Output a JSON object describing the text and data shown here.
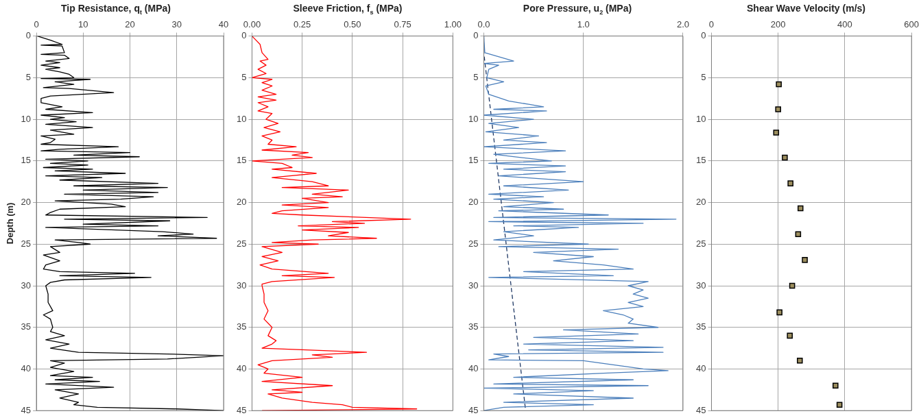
{
  "chart_data": [
    {
      "type": "line",
      "title": "Tip Resistance, q$_{t}$ (MPa)",
      "ylabel": "Depth (m)",
      "xlim": [
        0,
        40
      ],
      "xticks": [
        0,
        10,
        20,
        30,
        40
      ],
      "ylim": [
        45,
        0
      ],
      "yticks": [
        0,
        5,
        10,
        15,
        20,
        25,
        30,
        35,
        40,
        45
      ],
      "grid": true,
      "legend": false,
      "marker": "none",
      "series": [
        {
          "color": "#000000",
          "x": [
            0.2,
            3,
            5.5,
            1,
            5.5,
            6,
            1,
            6,
            7,
            2,
            5,
            1,
            5,
            2,
            5,
            7,
            8,
            1,
            11.5,
            4,
            8,
            1.5,
            7,
            16.5,
            3,
            1,
            1,
            5.5,
            2,
            12,
            1,
            6,
            3,
            8.5,
            2,
            12,
            3,
            8,
            1,
            4,
            3,
            1,
            17.5,
            5,
            1,
            20,
            8,
            22,
            2,
            11,
            3,
            11,
            1.5,
            12,
            4,
            19,
            2,
            14,
            5,
            26,
            8,
            28,
            10,
            26,
            6,
            25,
            18,
            4,
            16,
            19,
            5,
            3,
            2,
            36.5,
            6,
            28.5,
            10,
            26,
            2,
            27,
            33.5,
            26,
            38.5,
            4,
            9,
            11.5,
            3,
            5,
            1.5,
            5,
            2,
            1.5,
            5,
            21,
            5,
            24.5,
            6,
            3,
            2,
            2.5,
            2.5,
            3.5,
            1.5,
            3,
            3.5,
            3,
            6,
            2,
            7,
            3,
            9,
            28,
            40,
            28,
            3,
            6,
            3,
            8,
            3,
            12,
            4,
            13.5,
            2,
            16.5,
            4,
            9,
            5,
            9,
            8,
            13,
            30,
            40
          ],
          "values": [
            0,
            0.5,
            1,
            1.1,
            1.2,
            2,
            2.2,
            2.3,
            2.7,
            3,
            3.2,
            3.5,
            3.8,
            4,
            4.3,
            4.6,
            5,
            5.1,
            5.2,
            5.5,
            5.8,
            6.2,
            6.3,
            6.8,
            7.2,
            7.5,
            8,
            8.5,
            8.8,
            9.2,
            9.5,
            9.8,
            10,
            10.3,
            10.6,
            11,
            11.3,
            11.8,
            12,
            12.4,
            12.8,
            13,
            13.3,
            13.6,
            13.8,
            14,
            14.3,
            14.5,
            14.8,
            15,
            15.3,
            15.5,
            15.8,
            16,
            16.2,
            16.5,
            16.8,
            17,
            17.3,
            17.7,
            18,
            18.2,
            18.5,
            18.8,
            19,
            19.3,
            19.6,
            19.8,
            20.2,
            20.5,
            20.8,
            21.2,
            21.5,
            21.8,
            22,
            22.2,
            22.6,
            22.8,
            23,
            23.5,
            23.8,
            24,
            24.3,
            24.5,
            24.8,
            25,
            25.3,
            26,
            26.3,
            27,
            27.5,
            28,
            28.3,
            28.5,
            28.8,
            29,
            29.3,
            29.6,
            30,
            31,
            32,
            33,
            33.5,
            34,
            35,
            35.5,
            36,
            36.5,
            37,
            37.5,
            38,
            38.2,
            38.4,
            38.8,
            39,
            39.3,
            39.8,
            40.3,
            40.8,
            41,
            41.3,
            41.5,
            41.8,
            42.2,
            42.5,
            43,
            43.5,
            44,
            44.3,
            44.6,
            44.8,
            45
          ]
        }
      ]
    },
    {
      "type": "line",
      "title": "Sleeve Friction, f$_{s}$ (MPa)",
      "xlim": [
        0,
        1
      ],
      "xticks": [
        {
          "value": 0,
          "label": "0.00"
        },
        {
          "value": 0.25,
          "label": "0.25"
        },
        {
          "value": 0.5,
          "label": "0.50"
        },
        {
          "value": 0.75,
          "label": "0.75"
        },
        {
          "value": 1,
          "label": "1.00"
        }
      ],
      "ylim": [
        45,
        0
      ],
      "yticks": [
        0,
        5,
        10,
        15,
        20,
        25,
        30,
        35,
        40,
        45
      ],
      "grid": true,
      "legend": false,
      "marker": "none",
      "series": [
        {
          "color": "#ff0000",
          "x": [
            0,
            0.02,
            0.04,
            0.05,
            0.08,
            0.04,
            0.07,
            0.03,
            0.07,
            0,
            0.1,
            0.05,
            0.1,
            0.05,
            0.12,
            0.03,
            0.12,
            0.03,
            0.08,
            0.03,
            0.1,
            0.07,
            0.13,
            0.06,
            0.14,
            0.05,
            0.1,
            0.08,
            0.22,
            0.05,
            0.28,
            0.2,
            0.3,
            0,
            0.15,
            0.2,
            0.1,
            0.32,
            0.1,
            0.3,
            0.38,
            0.15,
            0.48,
            0.3,
            0.45,
            0.25,
            0.38,
            0.15,
            0.38,
            0.15,
            0.1,
            0.25,
            0.79,
            0.4,
            0.56,
            0.23,
            0.53,
            0.25,
            0.48,
            0.38,
            0.62,
            0.3,
            0.1,
            0.33,
            0.05,
            0.15,
            0.05,
            0.13,
            0.04,
            0.1,
            0.38,
            0.15,
            0.41,
            0.1,
            0.05,
            0.05,
            0.06,
            0.06,
            0.08,
            0.06,
            0.1,
            0.08,
            0.12,
            0.1,
            0.05,
            0.57,
            0.3,
            0.4,
            0.1,
            0.03,
            0.08,
            0.06,
            0.25,
            0.05,
            0.4,
            0.1,
            0.25,
            0.08,
            0.15,
            0.3,
            0.45,
            0.5,
            0.82,
            0.05
          ],
          "values": [
            0,
            0.5,
            1,
            2,
            2.8,
            3,
            3.5,
            4,
            4.5,
            5,
            5.2,
            5.6,
            6,
            6.5,
            7,
            7.3,
            7.7,
            8,
            8.5,
            9,
            9.3,
            10,
            10.5,
            11,
            11.5,
            12,
            12.5,
            13,
            13.3,
            13.7,
            14,
            14.3,
            14.6,
            15,
            15.3,
            15.8,
            16,
            16.5,
            17,
            17.5,
            18,
            18.2,
            18.5,
            19,
            19.3,
            19.5,
            20,
            20.3,
            20.6,
            21,
            21.3,
            21.5,
            22,
            22.3,
            22.5,
            22.8,
            23,
            23.3,
            23.6,
            24,
            24.3,
            24.5,
            24.8,
            25,
            25.3,
            26,
            26.5,
            27,
            27.5,
            28,
            28.5,
            28.8,
            29,
            29.5,
            29.8,
            30,
            31,
            32,
            33,
            34,
            35,
            36,
            36.6,
            37,
            37.5,
            38,
            38.3,
            38.6,
            39,
            39.5,
            40,
            40.5,
            41,
            41.5,
            42,
            42.5,
            42.8,
            43,
            43.5,
            44,
            44.3,
            44.6,
            44.8,
            45
          ]
        }
      ]
    },
    {
      "type": "line",
      "title": "Pore Pressure, u$_{2}$ (MPa)",
      "xlim": [
        0,
        2
      ],
      "xticks": [
        {
          "value": 0,
          "label": "0.0"
        },
        {
          "value": 1,
          "label": "1.0"
        },
        {
          "value": 2,
          "label": "2.0"
        }
      ],
      "ylim": [
        45,
        0
      ],
      "yticks": [
        0,
        5,
        10,
        15,
        20,
        25,
        30,
        35,
        40,
        45
      ],
      "grid": true,
      "legend": false,
      "marker": "none",
      "series": [
        {
          "color": "#4a7ebb",
          "x": [
            0,
            0.01,
            0.3,
            0,
            0.15,
            0.05,
            0.03,
            0.2,
            0.02,
            0.05,
            0.25,
            0.45,
            0.6,
            0.1,
            0.63,
            0,
            0.5,
            0.05,
            0.35,
            0.02,
            0.55,
            0.2,
            0.63,
            0,
            0.82,
            0.1,
            0.3,
            0.68,
            0.05,
            0.82,
            0.2,
            0.82,
            0.15,
            0.4,
            1,
            0.2,
            0.85,
            0.05,
            0.6,
            0.1,
            0.7,
            0.2,
            0.8,
            0.15,
            1.25,
            0.1,
            1.93,
            0.05,
            1.6,
            0.3,
            0.95,
            0.2,
            0.5,
            0.1,
            1.05,
            0.15,
            1.35,
            0.5,
            1.1,
            0.7,
            1.2,
            1.5,
            0.4,
            1.3,
            0.05,
            1.65,
            1.45,
            1.6,
            1.5,
            1.65,
            1.45,
            1.6,
            1.2,
            1.4,
            1.5,
            1.45,
            1.75,
            0.8,
            1.55,
            0.5,
            1.5,
            0.4,
            1.8,
            0.45,
            1.8,
            0.1,
            0.25,
            0.05,
            1,
            1.3,
            1.6,
            1.85,
            1.2,
            0.3,
            1.5,
            0.1,
            1.65,
            0,
            1.1,
            0.3,
            1.5,
            0.2,
            1.1,
            0.2,
            0
          ],
          "values": [
            0,
            2,
            3,
            3.3,
            3.5,
            4,
            5,
            5.5,
            6,
            7,
            7.8,
            8.2,
            8.5,
            8.8,
            9,
            9.5,
            10,
            10.5,
            11,
            11.5,
            12,
            12.5,
            12.8,
            13.3,
            13.8,
            14.2,
            14.5,
            15,
            15.3,
            15.6,
            16,
            16.3,
            16.8,
            17,
            17.5,
            18,
            18.5,
            19,
            19.3,
            19.6,
            20,
            20.5,
            20.8,
            21,
            21.5,
            21.8,
            22,
            22.3,
            22.5,
            22.8,
            23,
            23.5,
            24,
            24.5,
            25,
            25.3,
            25.6,
            26,
            26.5,
            27,
            27.5,
            28,
            28.3,
            28.8,
            29,
            29.5,
            30,
            30.5,
            31,
            31.5,
            32,
            32.5,
            33,
            33.5,
            34,
            34.5,
            35,
            35.3,
            35.8,
            36.2,
            36.6,
            37,
            37.4,
            37.7,
            38,
            38.2,
            38.5,
            38.9,
            39,
            39.5,
            40,
            40.2,
            40.5,
            41,
            41.3,
            41.8,
            42,
            42.3,
            42.6,
            43,
            43.5,
            44,
            44.3,
            44.6,
            45
          ]
        },
        {
          "color": "#1f3864",
          "line_style": "dashed",
          "x": [
            0,
            0,
            0.42
          ],
          "values": [
            0,
            2,
            45
          ]
        }
      ]
    },
    {
      "type": "scatter",
      "title": "Shear Wave Velocity (m/s)",
      "xlim": [
        0,
        600
      ],
      "xticks": [
        0,
        200,
        400,
        600
      ],
      "ylim": [
        45,
        0
      ],
      "yticks": [
        0,
        5,
        10,
        15,
        20,
        25,
        30,
        35,
        40,
        45
      ],
      "grid": true,
      "legend": false,
      "marker": "square",
      "series": [
        {
          "color": "#9c8e5e",
          "x": [
            202,
            200,
            194,
            220,
            237,
            267,
            260,
            280,
            242,
            204,
            235,
            265,
            372,
            384
          ],
          "values": [
            5.8,
            8.8,
            11.6,
            14.6,
            17.7,
            20.7,
            23.8,
            26.9,
            30,
            33.2,
            36,
            39,
            42,
            44.3
          ]
        }
      ]
    }
  ]
}
